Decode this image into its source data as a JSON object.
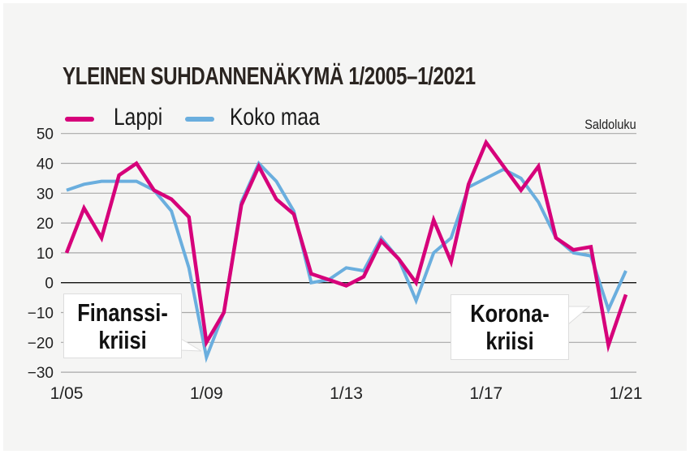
{
  "chart_data": {
    "type": "line",
    "title": "YLEINEN SUHDANNENÄKYMÄ 1/2005–1/2021",
    "ylabel": "Saldoluku",
    "ylim": [
      -30,
      50
    ],
    "yticks": [
      "50",
      "40",
      "30",
      "20",
      "10",
      "0",
      "−10",
      "−20",
      "−30"
    ],
    "ytick_values": [
      50,
      40,
      30,
      20,
      10,
      0,
      -10,
      -20,
      -30
    ],
    "xticks": [
      "1/05",
      "1/09",
      "1/13",
      "1/17",
      "1/21"
    ],
    "x": [
      "1/05",
      "7/05",
      "1/06",
      "7/06",
      "1/07",
      "7/07",
      "1/08",
      "7/08",
      "1/09",
      "7/09",
      "1/10",
      "7/10",
      "1/11",
      "7/11",
      "1/12",
      "7/12",
      "1/13",
      "7/13",
      "1/14",
      "7/14",
      "1/15",
      "7/15",
      "1/16",
      "7/16",
      "1/17",
      "7/17",
      "1/18",
      "7/18",
      "1/19",
      "7/19",
      "1/20",
      "7/20",
      "1/21"
    ],
    "grid": true,
    "legend": "top-left",
    "series": [
      {
        "name": "Lappi",
        "color": "#d6007a",
        "values": [
          10,
          25,
          15,
          36,
          40,
          31,
          28,
          22,
          -20,
          -10,
          26,
          39,
          28,
          23,
          3,
          1,
          -1,
          2,
          14,
          8,
          0,
          21,
          7,
          33,
          47,
          39,
          31,
          39,
          15,
          11,
          12,
          -21,
          -4
        ]
      },
      {
        "name": "Koko maa",
        "color": "#6aaede",
        "values": [
          31,
          33,
          34,
          34,
          34,
          31,
          24,
          5,
          -25,
          -10,
          27,
          40,
          34,
          24,
          0,
          1,
          5,
          4,
          15,
          8,
          -6,
          10,
          15,
          32,
          35,
          38,
          35,
          27,
          15,
          10,
          9,
          -9,
          4
        ]
      }
    ],
    "annotations": [
      {
        "text1": "Finanssi-",
        "text2": "kriisi"
      },
      {
        "text1": "Korona-",
        "text2": "kriisi"
      }
    ]
  }
}
